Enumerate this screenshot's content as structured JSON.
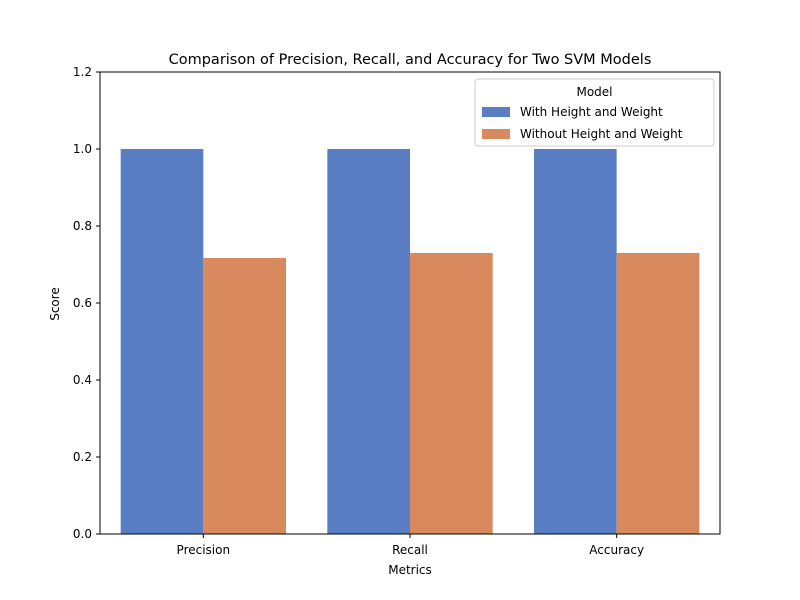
{
  "chart_data": {
    "type": "bar",
    "title": "Comparison of Precision, Recall, and Accuracy for Two SVM Models",
    "xlabel": "Metrics",
    "ylabel": "Score",
    "categories": [
      "Precision",
      "Recall",
      "Accuracy"
    ],
    "ylim": [
      0,
      1.2
    ],
    "yticks": [
      "0.0",
      "0.2",
      "0.4",
      "0.6",
      "0.8",
      "1.0",
      "1.2"
    ],
    "grid": false,
    "legend": {
      "title": "Model",
      "position": "top-right"
    },
    "series": [
      {
        "name": "With Height and Weight",
        "color": "#5a7ec4",
        "values": [
          1.0,
          1.0,
          1.0
        ]
      },
      {
        "name": "Without Height and Weight",
        "color": "#d8895e",
        "values": [
          0.717,
          0.73,
          0.73
        ]
      }
    ]
  }
}
